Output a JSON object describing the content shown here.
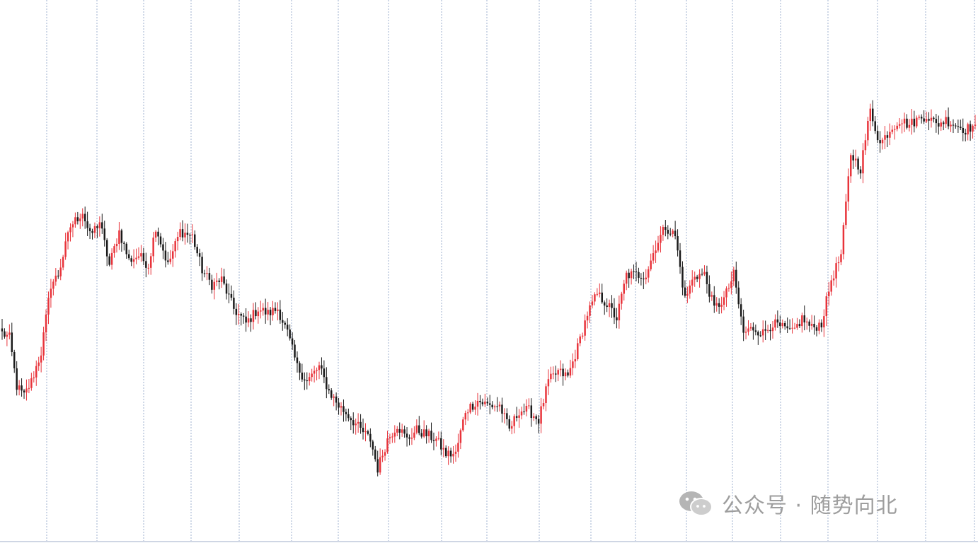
{
  "chart_data": {
    "type": "candlestick",
    "title": "",
    "xlabel": "",
    "ylabel": "",
    "grid": {
      "vertical": true,
      "horizontal": false
    },
    "up_color": "#e8333a",
    "down_color": "#1a1a1a",
    "background": "#ffffff",
    "grid_color": "#9fb0cf",
    "ylim": [
      0,
      100
    ],
    "anchors": [
      [
        0,
        40
      ],
      [
        3,
        39
      ],
      [
        6,
        29
      ],
      [
        9,
        27
      ],
      [
        12,
        30
      ],
      [
        16,
        36
      ],
      [
        20,
        50
      ],
      [
        23,
        52
      ],
      [
        28,
        62
      ],
      [
        33,
        65
      ],
      [
        36,
        60
      ],
      [
        40,
        63
      ],
      [
        44,
        54
      ],
      [
        48,
        61
      ],
      [
        52,
        55
      ],
      [
        56,
        56
      ],
      [
        60,
        54
      ],
      [
        63,
        62
      ],
      [
        68,
        54
      ],
      [
        73,
        61
      ],
      [
        78,
        60
      ],
      [
        82,
        53
      ],
      [
        86,
        50
      ],
      [
        90,
        51
      ],
      [
        95,
        45
      ],
      [
        100,
        42
      ],
      [
        105,
        45
      ],
      [
        109,
        44
      ],
      [
        113,
        45
      ],
      [
        117,
        40
      ],
      [
        121,
        33
      ],
      [
        125,
        30
      ],
      [
        130,
        33
      ],
      [
        134,
        28
      ],
      [
        138,
        25
      ],
      [
        142,
        23
      ],
      [
        147,
        20
      ],
      [
        151,
        18
      ],
      [
        154,
        12
      ],
      [
        158,
        18
      ],
      [
        162,
        21
      ],
      [
        166,
        18
      ],
      [
        170,
        20
      ],
      [
        174,
        19
      ],
      [
        178,
        18
      ],
      [
        182,
        15
      ],
      [
        186,
        15
      ],
      [
        190,
        24
      ],
      [
        195,
        26
      ],
      [
        200,
        25
      ],
      [
        204,
        25
      ],
      [
        208,
        20
      ],
      [
        212,
        24
      ],
      [
        216,
        24
      ],
      [
        220,
        22
      ],
      [
        224,
        30
      ],
      [
        228,
        32
      ],
      [
        232,
        31
      ],
      [
        236,
        37
      ],
      [
        240,
        44
      ],
      [
        244,
        48
      ],
      [
        248,
        46
      ],
      [
        252,
        43
      ],
      [
        256,
        52
      ],
      [
        260,
        52
      ],
      [
        264,
        52
      ],
      [
        268,
        58
      ],
      [
        272,
        62
      ],
      [
        276,
        60
      ],
      [
        280,
        47
      ],
      [
        284,
        52
      ],
      [
        288,
        52
      ],
      [
        292,
        45
      ],
      [
        296,
        47
      ],
      [
        300,
        52
      ],
      [
        304,
        40
      ],
      [
        308,
        41
      ],
      [
        312,
        40
      ],
      [
        316,
        42
      ],
      [
        320,
        41
      ],
      [
        324,
        40
      ],
      [
        328,
        43
      ],
      [
        332,
        41
      ],
      [
        336,
        42
      ],
      [
        340,
        51
      ],
      [
        344,
        56
      ],
      [
        348,
        77
      ],
      [
        352,
        74
      ],
      [
        356,
        86
      ],
      [
        360,
        79
      ],
      [
        364,
        82
      ],
      [
        368,
        84
      ],
      [
        372,
        83
      ],
      [
        375,
        84
      ],
      [
        379,
        85
      ],
      [
        383,
        83
      ],
      [
        387,
        84
      ],
      [
        391,
        83
      ],
      [
        395,
        82
      ],
      [
        399,
        83
      ]
    ]
  },
  "watermark": {
    "text": "公众号 · 随势向北",
    "icon": "wechat-icon"
  }
}
